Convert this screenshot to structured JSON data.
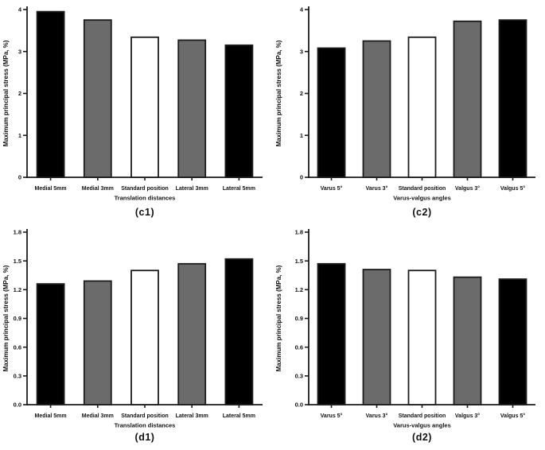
{
  "figure": {
    "background": "#ffffff",
    "axis_color": "#1c1c1c",
    "bar_border_color": "#1c1c1c",
    "bar_palette": {
      "black": "#000000",
      "gray": "#6b6b6b",
      "white": "#ffffff"
    }
  },
  "chart_data": [
    {
      "id": "c1",
      "type": "bar",
      "caption": "(c1)",
      "ylabel": "Maximum principal stress (MPa, %)",
      "xlabel": "Translation distances",
      "categories": [
        "Medial 5mm",
        "Medial 3mm",
        "Standard position",
        "Lateral 3mm",
        "Lateral 5mm"
      ],
      "values": [
        3.95,
        3.75,
        3.34,
        3.27,
        3.15
      ],
      "bar_fill_keys": [
        "black",
        "gray",
        "white",
        "gray",
        "black"
      ],
      "ylim": [
        0,
        4
      ],
      "yticks": [
        "0",
        "1",
        "2",
        "3",
        "4"
      ],
      "grid": false,
      "legend": "none"
    },
    {
      "id": "c2",
      "type": "bar",
      "caption": "(c2)",
      "ylabel": "Maximum principal stress (MPa, %)",
      "xlabel": "Varus-valgus angles",
      "categories": [
        "Varus 5°",
        "Varus 3°",
        "Standard position",
        "Valgus 3°",
        "Valgus 5°"
      ],
      "values": [
        3.08,
        3.25,
        3.34,
        3.72,
        3.75
      ],
      "bar_fill_keys": [
        "black",
        "gray",
        "white",
        "gray",
        "black"
      ],
      "ylim": [
        0,
        4
      ],
      "yticks": [
        "0",
        "1",
        "2",
        "3",
        "4"
      ],
      "grid": false,
      "legend": "none"
    },
    {
      "id": "d1",
      "type": "bar",
      "caption": "(d1)",
      "ylabel": "Maximum principal stress (MPa, %)",
      "xlabel": "Translation distances",
      "categories": [
        "Medial 5mm",
        "Medial 3mm",
        "Standard position",
        "Lateral 3mm",
        "Lateral 5mm"
      ],
      "values": [
        1.26,
        1.29,
        1.4,
        1.47,
        1.52
      ],
      "bar_fill_keys": [
        "black",
        "gray",
        "white",
        "gray",
        "black"
      ],
      "ylim": [
        0,
        1.8
      ],
      "yticks": [
        "0.0",
        "0.3",
        "0.6",
        "0.9",
        "1.2",
        "1.5",
        "1.8"
      ],
      "grid": false,
      "legend": "none"
    },
    {
      "id": "d2",
      "type": "bar",
      "caption": "(d2)",
      "ylabel": "Maximum principal stress (MPa, %)",
      "xlabel": "Varus-valgus angles",
      "categories": [
        "Varus 5°",
        "Varus 3°",
        "Standard position",
        "Valgus 3°",
        "Valgus 5°"
      ],
      "values": [
        1.47,
        1.41,
        1.4,
        1.33,
        1.31
      ],
      "bar_fill_keys": [
        "black",
        "gray",
        "white",
        "gray",
        "black"
      ],
      "ylim": [
        0,
        1.8
      ],
      "yticks": [
        "0.0",
        "0.3",
        "0.6",
        "0.9",
        "1.2",
        "1.5",
        "1.8"
      ],
      "grid": false,
      "legend": "none"
    }
  ]
}
